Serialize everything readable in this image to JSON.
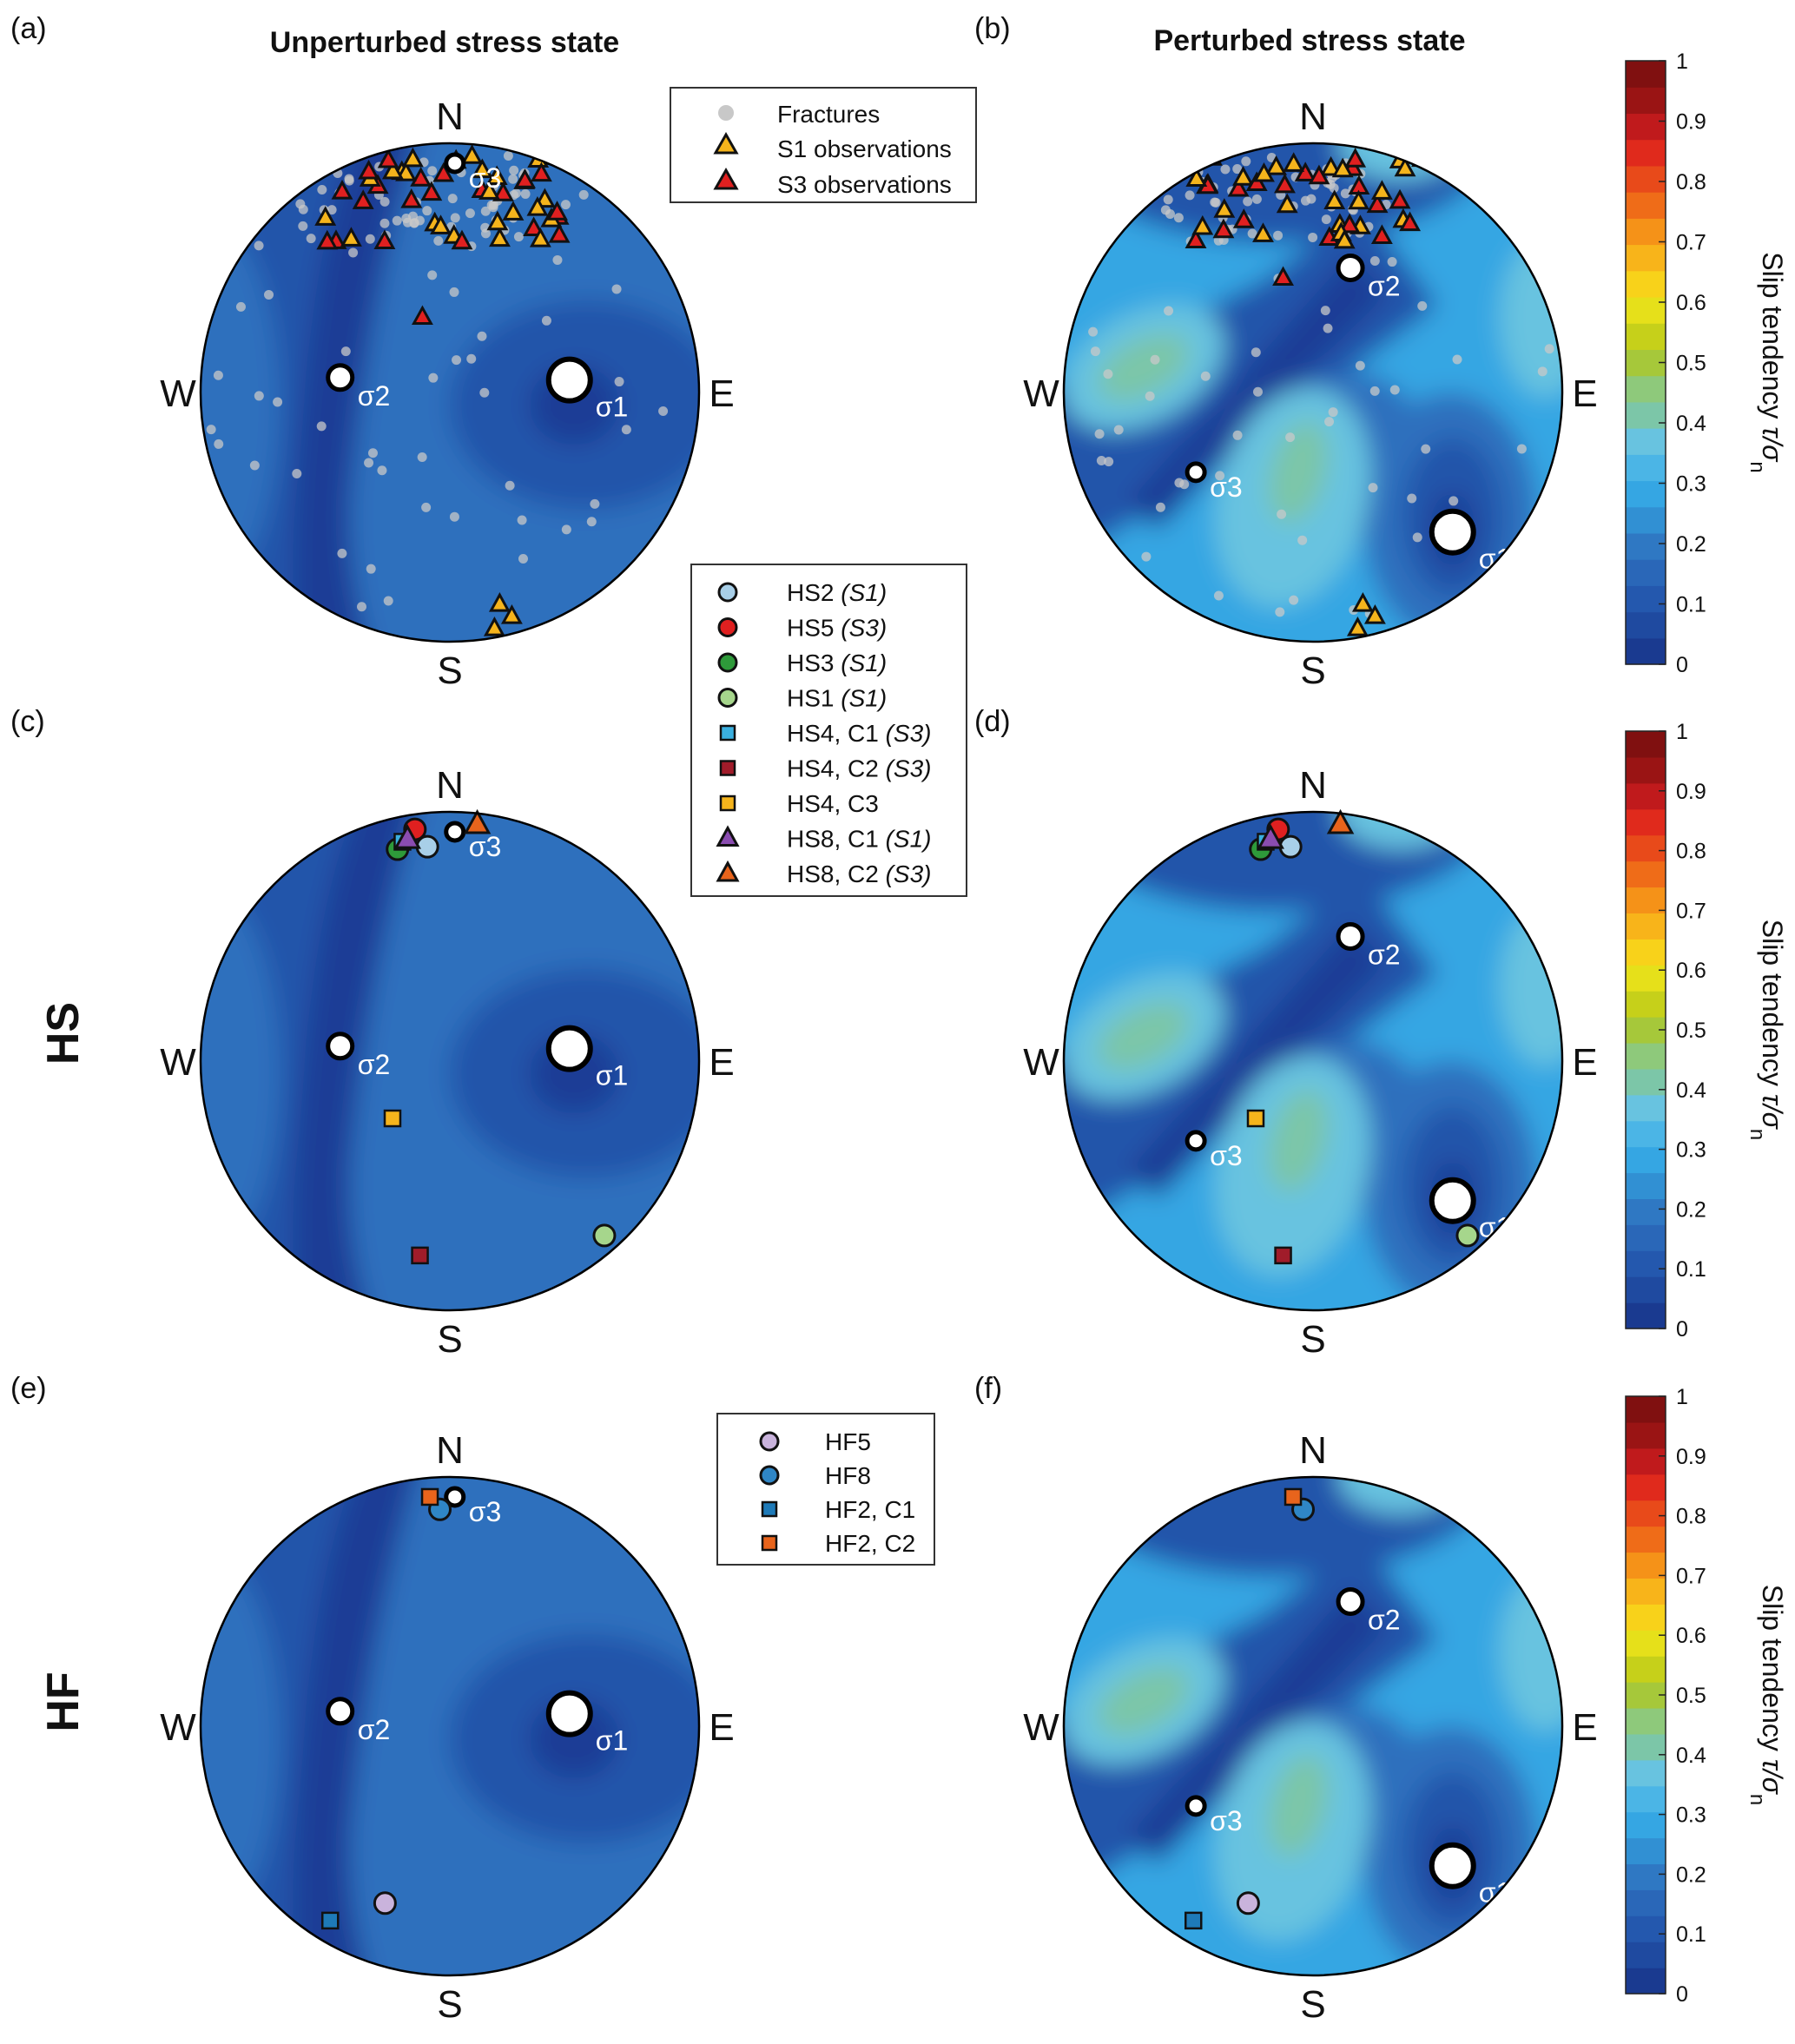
{
  "column_titles": {
    "left": "Unperturbed stress state",
    "right": "Perturbed stress state"
  },
  "row_labels": {
    "row2": "HS",
    "row3": "HF"
  },
  "compass": {
    "north": "N",
    "south": "S",
    "east": "E",
    "west": "W"
  },
  "stress_labels": {
    "sigma1": "σ1",
    "sigma2": "σ2",
    "sigma3": "σ3"
  },
  "colors": {
    "level_0": "#1a3d96",
    "level_1": "#2455aa",
    "level_2": "#2e6fbd",
    "level_3": "#35a6e3",
    "level_4": "#68c3e0",
    "level_5": "#7cc6a8",
    "fracture": "#c8c8c8",
    "s1_obs": "#f5b41c",
    "s3_obs": "#e02020"
  },
  "legend_observations": [
    {
      "label": "Fractures",
      "symbol": "dot",
      "color": "#c8c8c8"
    },
    {
      "label": "S1 observations",
      "symbol": "triangle",
      "color": "#f5b41c"
    },
    {
      "label": "S3 observations",
      "symbol": "triangle",
      "color": "#e02020"
    }
  ],
  "legend_hs": [
    {
      "name": "HS2",
      "tag": "(S1)",
      "symbol": "circle",
      "color": "#a8cfe8"
    },
    {
      "name": "HS5",
      "tag": "(S3)",
      "symbol": "circle",
      "color": "#e02020"
    },
    {
      "name": "HS3",
      "tag": "(S1)",
      "symbol": "circle",
      "color": "#2e9a3a"
    },
    {
      "name": "HS1",
      "tag": "(S1)",
      "symbol": "circle",
      "color": "#a6d68c"
    },
    {
      "name": "HS4, C1",
      "tag": "(S3)",
      "symbol": "square",
      "color": "#3ab0e0"
    },
    {
      "name": "HS4, C2",
      "tag": "(S3)",
      "symbol": "square",
      "color": "#a01c2a"
    },
    {
      "name": "HS4, C3",
      "tag": "",
      "symbol": "square",
      "color": "#f5b41c"
    },
    {
      "name": "HS8, C1",
      "tag": "(S1)",
      "symbol": "triangle",
      "color": "#8a4cb0"
    },
    {
      "name": "HS8, C2",
      "tag": "(S3)",
      "symbol": "triangle",
      "color": "#e8641c"
    }
  ],
  "legend_hf": [
    {
      "name": "HF5",
      "symbol": "circle",
      "color": "#c9b3dc"
    },
    {
      "name": "HF8",
      "symbol": "circle",
      "color": "#2f86c6"
    },
    {
      "name": "HF2, C1",
      "symbol": "square",
      "color": "#1e7ab8"
    },
    {
      "name": "HF2, C2",
      "symbol": "square",
      "color": "#e8641c"
    }
  ],
  "chart_data": [
    {
      "type": "heatmap",
      "panel": "(a)",
      "title": "Unperturbed stress state",
      "projection": "stereonet (lower hemisphere)",
      "points": {
        "sigma1": [
          0.48,
          0.05
        ],
        "sigma2": [
          -0.44,
          0.06
        ],
        "sigma3": [
          0.02,
          0.92
        ]
      }
    },
    {
      "type": "heatmap",
      "panel": "(b)",
      "title": "Perturbed stress state",
      "projection": "stereonet (lower hemisphere)",
      "points": {
        "sigma1": [
          0.56,
          -0.56
        ],
        "sigma2": [
          0.15,
          0.5
        ],
        "sigma3": [
          -0.47,
          -0.32
        ]
      }
    },
    {
      "type": "heatmap",
      "panel": "(c)",
      "row": "HS",
      "points": {
        "sigma1": [
          0.48,
          0.05
        ],
        "sigma2": [
          -0.44,
          0.06
        ],
        "sigma3": [
          0.02,
          0.92
        ],
        "HS2": [
          -0.09,
          0.86
        ],
        "HS5": [
          -0.14,
          0.93
        ],
        "HS3": [
          -0.21,
          0.85
        ],
        "HS1": [
          0.62,
          -0.7
        ],
        "HS4, C1": [
          -0.19,
          0.88
        ],
        "HS4, C2": [
          -0.12,
          -0.78
        ],
        "HS4, C3": [
          -0.23,
          -0.23
        ],
        "HS8, C1": [
          -0.17,
          0.89
        ],
        "HS8, C2": [
          0.11,
          0.95
        ]
      }
    },
    {
      "type": "heatmap",
      "panel": "(d)",
      "row": "HS",
      "points": {
        "sigma1": [
          0.56,
          -0.56
        ],
        "sigma2": [
          0.15,
          0.5
        ],
        "sigma3": [
          -0.47,
          -0.32
        ],
        "HS2": [
          -0.09,
          0.86
        ],
        "HS5": [
          -0.14,
          0.93
        ],
        "HS3": [
          -0.21,
          0.85
        ],
        "HS1": [
          0.62,
          -0.7
        ],
        "HS4, C1": [
          -0.19,
          0.88
        ],
        "HS4, C2": [
          -0.12,
          -0.78
        ],
        "HS4, C3": [
          -0.23,
          -0.23
        ],
        "HS8, C1": [
          -0.17,
          0.89
        ],
        "HS8, C2": [
          0.11,
          0.95
        ]
      }
    },
    {
      "type": "heatmap",
      "panel": "(e)",
      "row": "HF",
      "points": {
        "sigma1": [
          0.48,
          0.05
        ],
        "sigma2": [
          -0.44,
          0.06
        ],
        "sigma3": [
          0.02,
          0.92
        ],
        "HF5": [
          -0.26,
          -0.71
        ],
        "HF8": [
          -0.04,
          0.87
        ],
        "HF2, C1": [
          -0.48,
          -0.78
        ],
        "HF2, C2": [
          -0.08,
          0.92
        ]
      }
    },
    {
      "type": "heatmap",
      "panel": "(f)",
      "row": "HF",
      "points": {
        "sigma1": [
          0.56,
          -0.56
        ],
        "sigma2": [
          0.15,
          0.5
        ],
        "sigma3": [
          -0.47,
          -0.32
        ],
        "HF5": [
          -0.26,
          -0.71
        ],
        "HF8": [
          -0.04,
          0.87
        ],
        "HF2, C1": [
          -0.48,
          -0.78
        ],
        "HF2, C2": [
          -0.08,
          0.92
        ]
      }
    },
    {
      "type": "heatmap",
      "role": "colorbar",
      "label": "Slip tendency",
      "label_math": "τ/σ",
      "label_subscript": "n",
      "ticks": [
        "0",
        "0.1",
        "0.2",
        "0.3",
        "0.4",
        "0.5",
        "0.6",
        "0.7",
        "0.8",
        "0.9",
        "1"
      ],
      "range": [
        0,
        1
      ],
      "colors": [
        "#1a3a90",
        "#1f4aa0",
        "#2458ae",
        "#2a67b8",
        "#2f78c3",
        "#3190d3",
        "#35a6e3",
        "#4bb5e6",
        "#68c3e0",
        "#7cc6a8",
        "#8ec97b",
        "#a6c83a",
        "#c6d01a",
        "#e6e01a",
        "#f8d21a",
        "#f8b41a",
        "#f59218",
        "#ef6c18",
        "#e84a1a",
        "#e02a1c",
        "#c01a1c",
        "#9a1414",
        "#801010"
      ]
    }
  ]
}
